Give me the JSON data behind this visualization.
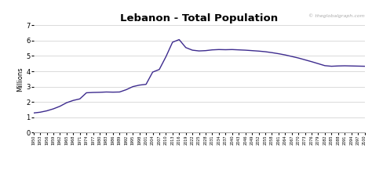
{
  "title": "Lebanon - Total Population",
  "ylabel": "Millions",
  "watermark": "© theglobalgraph.com",
  "line_color": "#3d2b8e",
  "bg_color": "#ffffff",
  "grid_color": "#cccccc",
  "ylim": [
    0,
    7
  ],
  "yticks": [
    0,
    1,
    2,
    3,
    4,
    5,
    6,
    7
  ],
  "years": [
    1950,
    1953,
    1956,
    1959,
    1962,
    1965,
    1968,
    1971,
    1974,
    1977,
    1980,
    1983,
    1986,
    1989,
    1992,
    1995,
    1998,
    2001,
    2004,
    2007,
    2010,
    2013,
    2016,
    2019,
    2022,
    2025,
    2028,
    2031,
    2034,
    2037,
    2040,
    2043,
    2046,
    2049,
    2052,
    2055,
    2058,
    2061,
    2064,
    2067,
    2070,
    2073,
    2076,
    2079,
    2082,
    2085,
    2088,
    2091,
    2094,
    2097,
    2100
  ],
  "population": [
    1.28,
    1.33,
    1.42,
    1.55,
    1.72,
    1.95,
    2.1,
    2.2,
    2.6,
    2.62,
    2.63,
    2.65,
    2.64,
    2.65,
    2.8,
    3.0,
    3.1,
    3.15,
    3.95,
    4.12,
    4.95,
    5.9,
    6.07,
    5.55,
    5.38,
    5.33,
    5.35,
    5.4,
    5.42,
    5.41,
    5.42,
    5.4,
    5.38,
    5.35,
    5.32,
    5.28,
    5.22,
    5.15,
    5.07,
    4.97,
    4.87,
    4.75,
    4.63,
    4.5,
    4.37,
    4.33,
    4.35,
    4.36,
    4.35,
    4.34,
    4.33
  ]
}
